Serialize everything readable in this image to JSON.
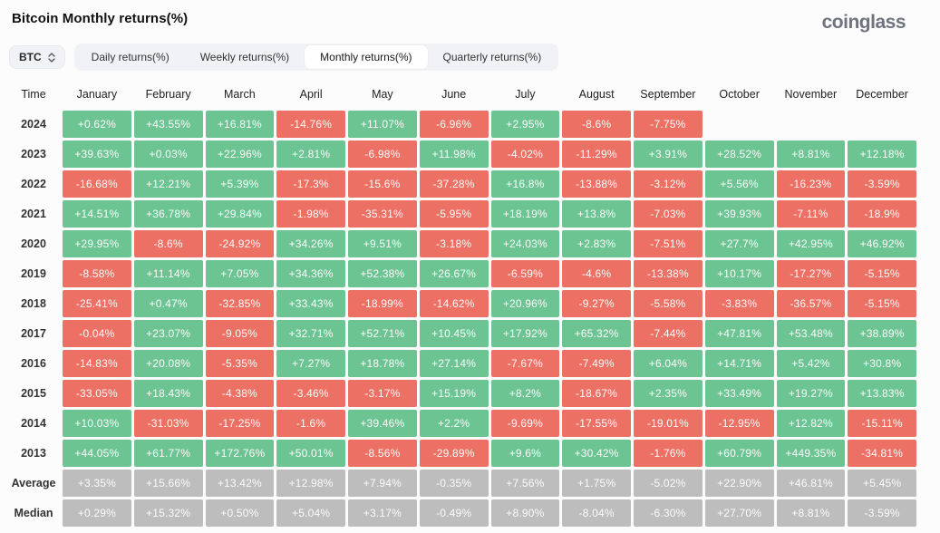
{
  "header": {
    "title": "Bitcoin Monthly returns(%)",
    "logo": "coinglass"
  },
  "controls": {
    "symbol": "BTC",
    "tabs": [
      {
        "label": "Daily returns(%)",
        "active": false
      },
      {
        "label": "Weekly returns(%)",
        "active": false
      },
      {
        "label": "Monthly returns(%)",
        "active": true
      },
      {
        "label": "Quarterly returns(%)",
        "active": false
      }
    ]
  },
  "colors": {
    "positive": "#6dc493",
    "negative": "#ec7164",
    "neutral": "#bdbdbd"
  },
  "table": {
    "columns": [
      "Time",
      "January",
      "February",
      "March",
      "April",
      "May",
      "June",
      "July",
      "August",
      "September",
      "October",
      "November",
      "December"
    ],
    "rows": [
      {
        "label": "2024",
        "type": "year",
        "values": [
          "+0.62%",
          "+43.55%",
          "+16.81%",
          "-14.76%",
          "+11.07%",
          "-6.96%",
          "+2.95%",
          "-8.6%",
          "-7.75%",
          "",
          "",
          ""
        ]
      },
      {
        "label": "2023",
        "type": "year",
        "values": [
          "+39.63%",
          "+0.03%",
          "+22.96%",
          "+2.81%",
          "-6.98%",
          "+11.98%",
          "-4.02%",
          "-11.29%",
          "+3.91%",
          "+28.52%",
          "+8.81%",
          "+12.18%"
        ]
      },
      {
        "label": "2022",
        "type": "year",
        "values": [
          "-16.68%",
          "+12.21%",
          "+5.39%",
          "-17.3%",
          "-15.6%",
          "-37.28%",
          "+16.8%",
          "-13.88%",
          "-3.12%",
          "+5.56%",
          "-16.23%",
          "-3.59%"
        ]
      },
      {
        "label": "2021",
        "type": "year",
        "values": [
          "+14.51%",
          "+36.78%",
          "+29.84%",
          "-1.98%",
          "-35.31%",
          "-5.95%",
          "+18.19%",
          "+13.8%",
          "-7.03%",
          "+39.93%",
          "-7.11%",
          "-18.9%"
        ]
      },
      {
        "label": "2020",
        "type": "year",
        "values": [
          "+29.95%",
          "-8.6%",
          "-24.92%",
          "+34.26%",
          "+9.51%",
          "-3.18%",
          "+24.03%",
          "+2.83%",
          "-7.51%",
          "+27.7%",
          "+42.95%",
          "+46.92%"
        ]
      },
      {
        "label": "2019",
        "type": "year",
        "values": [
          "-8.58%",
          "+11.14%",
          "+7.05%",
          "+34.36%",
          "+52.38%",
          "+26.67%",
          "-6.59%",
          "-4.6%",
          "-13.38%",
          "+10.17%",
          "-17.27%",
          "-5.15%"
        ]
      },
      {
        "label": "2018",
        "type": "year",
        "values": [
          "-25.41%",
          "+0.47%",
          "-32.85%",
          "+33.43%",
          "-18.99%",
          "-14.62%",
          "+20.96%",
          "-9.27%",
          "-5.58%",
          "-3.83%",
          "-36.57%",
          "-5.15%"
        ]
      },
      {
        "label": "2017",
        "type": "year",
        "values": [
          "-0.04%",
          "+23.07%",
          "-9.05%",
          "+32.71%",
          "+52.71%",
          "+10.45%",
          "+17.92%",
          "+65.32%",
          "-7.44%",
          "+47.81%",
          "+53.48%",
          "+38.89%"
        ]
      },
      {
        "label": "2016",
        "type": "year",
        "values": [
          "-14.83%",
          "+20.08%",
          "-5.35%",
          "+7.27%",
          "+18.78%",
          "+27.14%",
          "-7.67%",
          "-7.49%",
          "+6.04%",
          "+14.71%",
          "+5.42%",
          "+30.8%"
        ]
      },
      {
        "label": "2015",
        "type": "year",
        "values": [
          "-33.05%",
          "+18.43%",
          "-4.38%",
          "-3.46%",
          "-3.17%",
          "+15.19%",
          "+8.2%",
          "-18.67%",
          "+2.35%",
          "+33.49%",
          "+19.27%",
          "+13.83%"
        ]
      },
      {
        "label": "2014",
        "type": "year",
        "values": [
          "+10.03%",
          "-31.03%",
          "-17.25%",
          "-1.6%",
          "+39.46%",
          "+2.2%",
          "-9.69%",
          "-17.55%",
          "-19.01%",
          "-12.95%",
          "+12.82%",
          "-15.11%"
        ]
      },
      {
        "label": "2013",
        "type": "year",
        "values": [
          "+44.05%",
          "+61.77%",
          "+172.76%",
          "+50.01%",
          "-8.56%",
          "-29.89%",
          "+9.6%",
          "+30.42%",
          "-1.76%",
          "+60.79%",
          "+449.35%",
          "-34.81%"
        ]
      },
      {
        "label": "Average",
        "type": "summary",
        "values": [
          "+3.35%",
          "+15.66%",
          "+13.42%",
          "+12.98%",
          "+7.94%",
          "-0.35%",
          "+7.56%",
          "+1.75%",
          "-5.02%",
          "+22.90%",
          "+46.81%",
          "+5.45%"
        ]
      },
      {
        "label": "Median",
        "type": "summary",
        "values": [
          "+0.29%",
          "+15.32%",
          "+0.50%",
          "+5.04%",
          "+3.17%",
          "-0.49%",
          "+8.90%",
          "-8.04%",
          "-6.30%",
          "+27.70%",
          "+8.81%",
          "-3.59%"
        ]
      }
    ]
  }
}
